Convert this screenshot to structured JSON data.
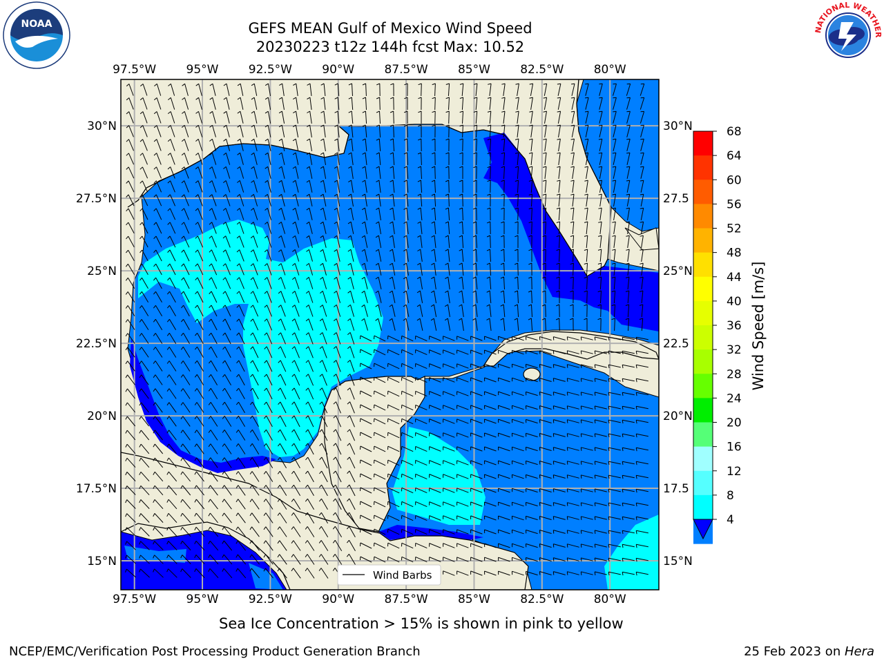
{
  "title": {
    "line1": "GEFS MEAN Gulf of Mexico Wind Speed",
    "line2": "20230223 t12z 144h fcst   Max: 10.52"
  },
  "map": {
    "lon_labels": [
      "97.5°W",
      "95°W",
      "92.5°W",
      "90°W",
      "87.5°W",
      "85°W",
      "82.5°W",
      "80°W"
    ],
    "lon_values": [
      -97.5,
      -95,
      -92.5,
      -90,
      -87.5,
      -85,
      -82.5,
      -80
    ],
    "lat_labels_left": [
      "30°N",
      "27.5°N",
      "25°N",
      "22.5°N",
      "20°N",
      "17.5°N",
      "15°N"
    ],
    "lat_labels_right": [
      "30°N",
      "27.5",
      "25°N",
      "22.5",
      "20°N",
      "17.5",
      "15°N"
    ],
    "lat_values": [
      30,
      27.5,
      25,
      22.5,
      20,
      17.5,
      15
    ],
    "extent": {
      "lon_min": -98,
      "lon_max": -78.2,
      "lat_min": 14,
      "lat_max": 31.6
    },
    "legend_label": "Wind Barbs",
    "land_color": "#efedd9",
    "grid_color": "#b0b0b0"
  },
  "colorbar": {
    "label": "Wind Speed [m/s]",
    "ticks": [
      "68",
      "64",
      "60",
      "56",
      "52",
      "48",
      "44",
      "40",
      "36",
      "32",
      "28",
      "24",
      "20",
      "16",
      "12",
      "8",
      "4"
    ],
    "colors": [
      "#ff0000",
      "#ff3300",
      "#ff5c00",
      "#ff8a00",
      "#ffb300",
      "#ffe000",
      "#ffff00",
      "#e6ff00",
      "#ccff00",
      "#a8ff00",
      "#66ff00",
      "#00ee00",
      "#55ff77",
      "#a0ffff",
      "#55ffff",
      "#00ffff",
      "#007fff"
    ],
    "extend_color": "#0000ff"
  },
  "caption": "Sea Ice Concentration > 15% is shown in pink to yellow",
  "footer": {
    "left": "NCEP/EMC/Verification Post Processing Product Generation Branch",
    "right_date": "25 Feb 2023 on ",
    "right_host": "Hera"
  },
  "logos": {
    "noaa": "NOAA",
    "nws": "NATIONAL WEATHER SERVICE"
  }
}
